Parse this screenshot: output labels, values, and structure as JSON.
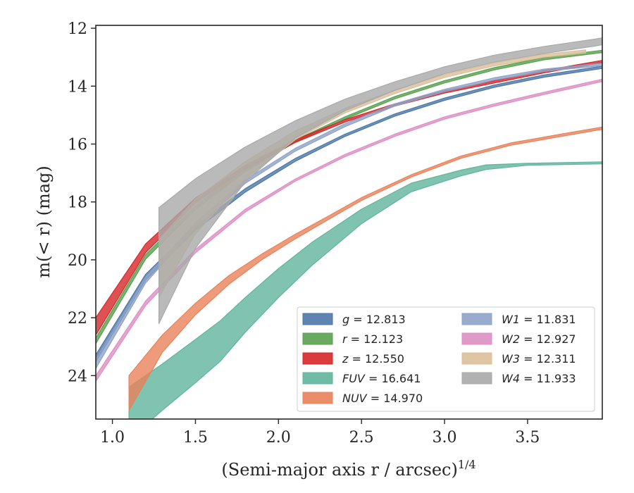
{
  "chart_data": {
    "type": "line",
    "xlabel": "(Semi-major axis r / arcsec)",
    "xlabel_superscript": "1/4",
    "ylabel": "m(< r) (mag)",
    "xlim": [
      0.9,
      3.95
    ],
    "ylim": [
      25.5,
      11.9
    ],
    "y_inverted": true,
    "grid": false,
    "legend_placement": "lower-right",
    "legend_columns": 2,
    "x_ticks": [
      "1.0",
      "1.5",
      "2.0",
      "2.5",
      "3.0",
      "3.5"
    ],
    "y_ticks": [
      "12",
      "14",
      "16",
      "18",
      "20",
      "22",
      "24"
    ],
    "series": [
      {
        "name": "g",
        "total": "12.813",
        "color": "#4c78a8",
        "x": [
          0.9,
          1.2,
          1.5,
          1.8,
          2.1,
          2.4,
          2.7,
          3.0,
          3.3,
          3.6,
          3.95
        ],
        "y": [
          23.4,
          20.6,
          18.9,
          17.6,
          16.55,
          15.7,
          15.0,
          14.45,
          14.0,
          13.65,
          13.35
        ],
        "width": [
          0.12,
          0.1,
          0.08,
          0.06,
          0.05,
          0.04,
          0.04,
          0.04,
          0.04,
          0.04,
          0.04
        ]
      },
      {
        "name": "r",
        "total": "12.123",
        "color": "#59a14f",
        "x": [
          0.9,
          1.2,
          1.5,
          1.8,
          2.1,
          2.4,
          2.7,
          3.0,
          3.3,
          3.6,
          3.95
        ],
        "y": [
          22.8,
          19.9,
          18.2,
          16.9,
          15.9,
          15.1,
          14.4,
          13.85,
          13.4,
          13.05,
          12.8
        ],
        "width": [
          0.1,
          0.08,
          0.06,
          0.05,
          0.04,
          0.04,
          0.04,
          0.04,
          0.04,
          0.04,
          0.04
        ]
      },
      {
        "name": "z",
        "total": "12.550",
        "color": "#d62728",
        "x": [
          0.9,
          1.2,
          1.5,
          1.8,
          2.1,
          2.4,
          2.7,
          3.0,
          3.3,
          3.6,
          3.95
        ],
        "y": [
          22.3,
          19.6,
          17.95,
          16.8,
          15.9,
          15.2,
          14.65,
          14.2,
          13.85,
          13.5,
          13.15
        ],
        "width": [
          0.3,
          0.15,
          0.08,
          0.06,
          0.05,
          0.04,
          0.04,
          0.04,
          0.04,
          0.04,
          0.04
        ]
      },
      {
        "name": "FUV",
        "total": "16.641",
        "color": "#5fb49c",
        "x": [
          1.1,
          1.3,
          1.5,
          1.65,
          1.8,
          2.0,
          2.2,
          2.5,
          2.8,
          3.1,
          3.25,
          3.5,
          3.95
        ],
        "y": [
          25.3,
          24.4,
          23.5,
          22.8,
          21.9,
          20.8,
          19.8,
          18.5,
          17.5,
          17.0,
          16.8,
          16.7,
          16.65
        ],
        "width": [
          0.9,
          0.8,
          0.75,
          0.7,
          0.6,
          0.5,
          0.4,
          0.25,
          0.15,
          0.1,
          0.08,
          0.02,
          0.02
        ]
      },
      {
        "name": "NUV",
        "total": "14.970",
        "color": "#e8825a",
        "x": [
          1.1,
          1.3,
          1.5,
          1.7,
          1.9,
          2.1,
          2.3,
          2.5,
          2.8,
          3.1,
          3.4,
          3.7,
          3.95
        ],
        "y": [
          24.6,
          22.9,
          21.7,
          20.7,
          19.9,
          19.2,
          18.55,
          17.9,
          17.1,
          16.45,
          16.0,
          15.7,
          15.45
        ],
        "width": [
          0.6,
          0.3,
          0.2,
          0.15,
          0.1,
          0.08,
          0.06,
          0.05,
          0.04,
          0.04,
          0.04,
          0.04,
          0.04
        ]
      },
      {
        "name": "W1",
        "total": "11.831",
        "color": "#8ea3c8",
        "x": [
          0.9,
          1.2,
          1.5,
          1.8,
          2.1,
          2.4,
          2.7,
          3.0,
          3.3,
          3.6,
          3.95
        ],
        "y": [
          23.6,
          20.7,
          18.8,
          17.3,
          16.2,
          15.35,
          14.65,
          14.15,
          13.75,
          13.45,
          13.25
        ],
        "width": [
          0.15,
          0.1,
          0.08,
          0.06,
          0.05,
          0.05,
          0.04,
          0.04,
          0.04,
          0.04,
          0.04
        ]
      },
      {
        "name": "W2",
        "total": "12.927",
        "color": "#dd8fc4",
        "x": [
          0.9,
          1.2,
          1.5,
          1.8,
          2.1,
          2.4,
          2.7,
          3.0,
          3.3,
          3.6,
          3.95
        ],
        "y": [
          24.1,
          21.5,
          19.7,
          18.3,
          17.25,
          16.4,
          15.7,
          15.1,
          14.65,
          14.25,
          13.8
        ],
        "width": [
          0.1,
          0.08,
          0.06,
          0.05,
          0.04,
          0.04,
          0.04,
          0.04,
          0.04,
          0.04,
          0.04
        ]
      },
      {
        "name": "W3",
        "total": "12.311",
        "color": "#dbbf9a",
        "x": [
          1.28,
          1.5,
          1.8,
          2.1,
          2.4,
          2.7,
          3.0,
          3.3,
          3.6,
          3.85
        ],
        "y": [
          20.3,
          18.5,
          16.9,
          15.7,
          14.85,
          14.2,
          13.65,
          13.25,
          12.95,
          12.8
        ],
        "width": [
          1.0,
          0.6,
          0.3,
          0.15,
          0.08,
          0.06,
          0.05,
          0.05,
          0.05,
          0.05
        ]
      },
      {
        "name": "W4",
        "total": "11.933",
        "color": "#a9a9a9",
        "x": [
          1.28,
          1.5,
          1.8,
          2.1,
          2.4,
          2.7,
          3.0,
          3.3,
          3.6,
          3.9,
          3.95
        ],
        "y": [
          20.2,
          18.4,
          16.7,
          15.5,
          14.65,
          14.0,
          13.45,
          13.05,
          12.75,
          12.5,
          12.45
        ],
        "width": [
          2.0,
          1.2,
          0.6,
          0.3,
          0.2,
          0.15,
          0.12,
          0.12,
          0.12,
          0.12,
          0.12
        ]
      }
    ]
  }
}
